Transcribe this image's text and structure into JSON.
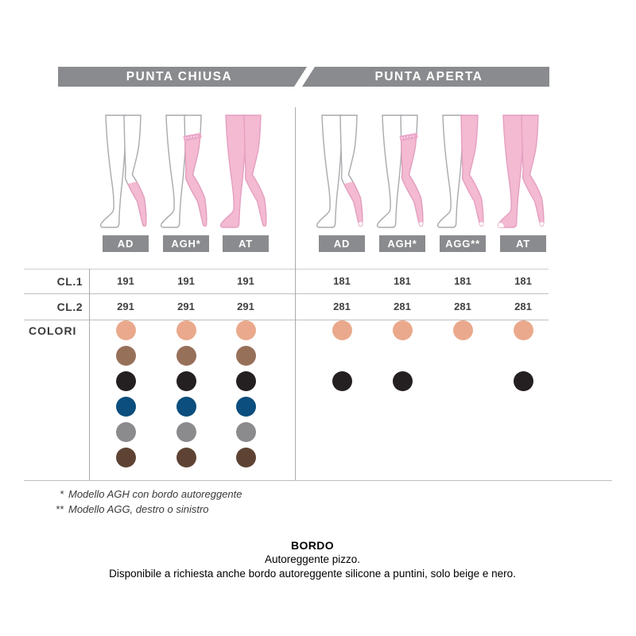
{
  "header": {
    "closed_tab": "PUNTA CHIUSA",
    "open_tab": "PUNTA APERTA"
  },
  "groups": [
    {
      "id": "punta-chiusa",
      "title": "PUNTA CHIUSA",
      "models": [
        {
          "label": "AD",
          "figure": "ad-closed",
          "cl1": "191",
          "cl2": "291"
        },
        {
          "label": "AGH*",
          "figure": "agh-closed",
          "cl1": "191",
          "cl2": "291"
        },
        {
          "label": "AT",
          "figure": "at-closed",
          "cl1": "191",
          "cl2": "291"
        }
      ]
    },
    {
      "id": "punta-aperta",
      "title": "PUNTA APERTA",
      "models": [
        {
          "label": "AD",
          "figure": "ad-open",
          "cl1": "181",
          "cl2": "281"
        },
        {
          "label": "AGH*",
          "figure": "agh-open",
          "cl1": "181",
          "cl2": "281"
        },
        {
          "label": "AGG**",
          "figure": "agg-open",
          "cl1": "181",
          "cl2": "281"
        },
        {
          "label": "AT",
          "figure": "at-open",
          "cl1": "181",
          "cl2": "281"
        }
      ]
    }
  ],
  "row_labels": {
    "cl1": "CL.1",
    "cl2": "CL.2",
    "colors": "COLORI"
  },
  "colors": [
    {
      "name": "beige",
      "hex": "#EAA98C",
      "closed": [
        true,
        true,
        true
      ],
      "open": [
        true,
        true,
        true,
        true
      ]
    },
    {
      "name": "marrone",
      "hex": "#97705A",
      "closed": [
        true,
        true,
        true
      ],
      "open": [
        false,
        false,
        false,
        false
      ]
    },
    {
      "name": "nero",
      "hex": "#241F20",
      "closed": [
        true,
        true,
        true
      ],
      "open": [
        true,
        true,
        false,
        true
      ]
    },
    {
      "name": "blu",
      "hex": "#0C4E7D",
      "closed": [
        true,
        true,
        true
      ],
      "open": [
        false,
        false,
        false,
        false
      ]
    },
    {
      "name": "grigio",
      "hex": "#8B8B8E",
      "closed": [
        true,
        true,
        true
      ],
      "open": [
        false,
        false,
        false,
        false
      ]
    },
    {
      "name": "testa-di-moro",
      "hex": "#5E4334",
      "closed": [
        true,
        true,
        true
      ],
      "open": [
        false,
        false,
        false,
        false
      ]
    }
  ],
  "footnotes": [
    {
      "marker": "*",
      "text": "Modello AGH con bordo autoreggente"
    },
    {
      "marker": "**",
      "text": "Modello AGG, destro o sinistro"
    }
  ],
  "bordo": {
    "title": "BORDO",
    "line1": "Autoreggente pizzo.",
    "line2": "Disponibile a richiesta anche bordo autoreggente silicone a puntini, solo beige e nero."
  },
  "palette": {
    "header_gray": "#8A8B8E",
    "badge_gray": "#8A8B8E",
    "line_gray": "#BEBFC2",
    "text_dark": "#3A3A3C",
    "tights_pink": "#F3BAD2",
    "tights_outline": "#E59FC0",
    "skin_outline": "#A8AAAD"
  }
}
